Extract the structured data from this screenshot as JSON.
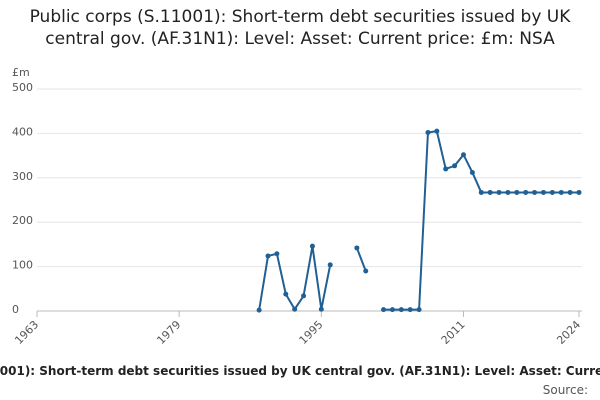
{
  "chart_data": {
    "type": "line",
    "title": "Public corps (S.11001): Short-term debt securities issued by UK central gov. (AF.31N1): Level: Asset: Current price: £m: NSA",
    "y_label": "£m",
    "x": [
      1988,
      1989,
      1990,
      1991,
      1992,
      1993,
      1994,
      1995,
      1996,
      1997,
      1998,
      1999,
      2000,
      2001,
      2002,
      2003,
      2004,
      2005,
      2006,
      2007,
      2008,
      2009,
      2010,
      2011,
      2012,
      2013,
      2014,
      2015,
      2016,
      2017,
      2018,
      2019,
      2020,
      2021,
      2022,
      2023,
      2024
    ],
    "series": [
      {
        "name": "Public corps (S.11001): Short-term debt securities issued by UK central gov. (AF.31N1): Level: Asset: Current price: £m: NSA",
        "color": "#206095",
        "values": [
          2,
          124,
          129,
          38,
          4,
          34,
          146,
          4,
          104,
          null,
          null,
          142,
          90,
          null,
          3,
          3,
          3,
          3,
          3,
          402,
          405,
          320,
          327,
          352,
          312,
          267,
          267,
          267,
          267,
          267,
          267,
          267,
          267,
          267,
          267,
          267,
          267
        ]
      }
    ],
    "xlim": [
      1963,
      2024
    ],
    "xticks": [
      1963,
      1979,
      1995,
      2011,
      2024
    ],
    "ylim": [
      0,
      500
    ],
    "yticks": [
      0,
      100,
      200,
      300,
      400,
      500
    ],
    "grid": true,
    "source": "Source:"
  }
}
